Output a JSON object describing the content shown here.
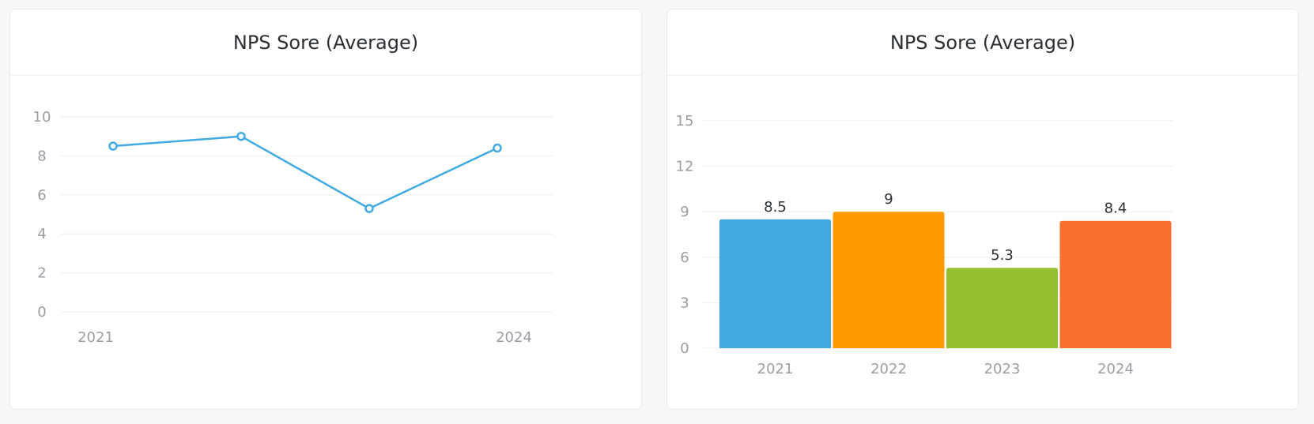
{
  "colors": {
    "line": "#41aadf",
    "grid": "#eceef0",
    "bars": [
      "#41aadf",
      "#fe9b00",
      "#94c02f",
      "#f96f2c"
    ]
  },
  "chart_data": [
    {
      "type": "line",
      "title": "NPS Sore (Average)",
      "categories": [
        "2021",
        "2022",
        "2023",
        "2024"
      ],
      "x_tick_labels": [
        "2021",
        "2024"
      ],
      "values": [
        8.5,
        9,
        5.3,
        8.4
      ],
      "ylim": [
        0,
        10
      ],
      "yticks": [
        0,
        2,
        4,
        6,
        8,
        10
      ],
      "grid": true,
      "legend": "none"
    },
    {
      "type": "bar",
      "title": "NPS Sore (Average)",
      "categories": [
        "2021",
        "2022",
        "2023",
        "2024"
      ],
      "values": [
        8.5,
        9,
        5.3,
        8.4
      ],
      "data_labels": [
        "8.5",
        "9",
        "5.3",
        "8.4"
      ],
      "ylim": [
        0,
        15
      ],
      "yticks": [
        0,
        3,
        6,
        9,
        12,
        15
      ],
      "grid": true,
      "legend": "none"
    }
  ]
}
